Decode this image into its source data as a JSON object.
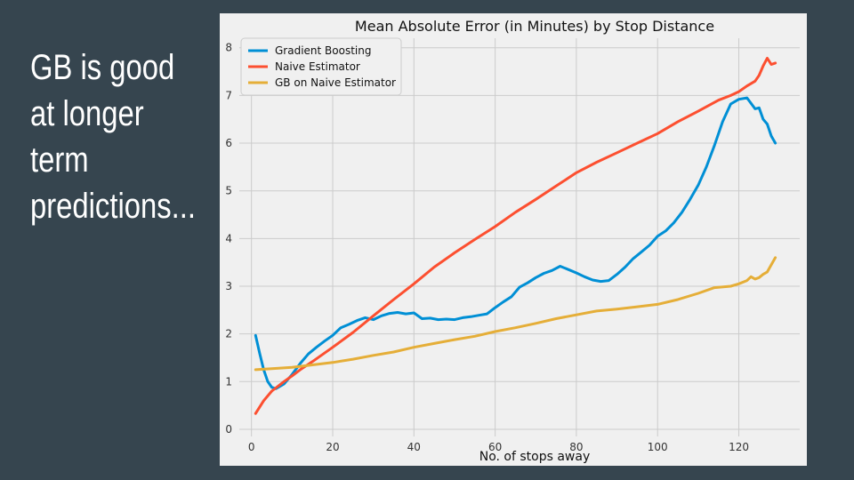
{
  "slide": {
    "text": "GB is good\nat longer\nterm\npredictions..."
  },
  "chart_data": {
    "type": "line",
    "title": "Mean Absolute Error (in Minutes) by Stop Distance",
    "xlabel": "No. of stops away",
    "ylabel": "",
    "xlim": [
      -3,
      135
    ],
    "ylim": [
      -0.15,
      8.2
    ],
    "xticks": [
      0,
      20,
      40,
      60,
      80,
      100,
      120
    ],
    "yticks": [
      0,
      1,
      2,
      3,
      4,
      5,
      6,
      7,
      8
    ],
    "grid": true,
    "legend_position": "top-left",
    "series": [
      {
        "name": "Gradient Boosting",
        "color": "#008fd5",
        "x": [
          1,
          2,
          3,
          4,
          5,
          6,
          8,
          10,
          12,
          14,
          16,
          18,
          20,
          22,
          24,
          26,
          28,
          30,
          32,
          34,
          36,
          38,
          40,
          42,
          44,
          46,
          48,
          50,
          52,
          54,
          56,
          58,
          60,
          62,
          64,
          66,
          68,
          70,
          72,
          74,
          76,
          78,
          80,
          82,
          84,
          86,
          88,
          90,
          92,
          94,
          96,
          98,
          100,
          102,
          104,
          106,
          108,
          110,
          112,
          114,
          116,
          118,
          120,
          122,
          124,
          125,
          126,
          127,
          128,
          129
        ],
        "y": [
          1.97,
          1.6,
          1.25,
          1.0,
          0.88,
          0.85,
          0.95,
          1.15,
          1.38,
          1.58,
          1.72,
          1.85,
          1.97,
          2.13,
          2.2,
          2.28,
          2.34,
          2.3,
          2.38,
          2.43,
          2.45,
          2.42,
          2.44,
          2.32,
          2.33,
          2.3,
          2.31,
          2.3,
          2.34,
          2.36,
          2.39,
          2.42,
          2.55,
          2.67,
          2.78,
          2.98,
          3.07,
          3.18,
          3.27,
          3.33,
          3.42,
          3.35,
          3.28,
          3.2,
          3.13,
          3.1,
          3.12,
          3.25,
          3.4,
          3.58,
          3.72,
          3.86,
          4.05,
          4.16,
          4.33,
          4.55,
          4.82,
          5.12,
          5.5,
          5.95,
          6.45,
          6.82,
          6.92,
          6.95,
          6.72,
          6.74,
          6.5,
          6.4,
          6.15,
          6.0
        ]
      },
      {
        "name": "Naive Estimator",
        "color": "#fc4f30",
        "x": [
          1,
          3,
          5,
          8,
          10,
          12,
          15,
          20,
          25,
          30,
          35,
          40,
          45,
          50,
          55,
          60,
          65,
          70,
          75,
          80,
          85,
          90,
          95,
          100,
          105,
          110,
          115,
          118,
          120,
          122,
          124,
          125,
          126,
          127,
          128,
          129
        ],
        "y": [
          0.33,
          0.6,
          0.8,
          1.0,
          1.12,
          1.25,
          1.42,
          1.72,
          2.03,
          2.38,
          2.72,
          3.05,
          3.4,
          3.7,
          3.98,
          4.25,
          4.55,
          4.82,
          5.1,
          5.38,
          5.6,
          5.8,
          6.0,
          6.2,
          6.45,
          6.67,
          6.9,
          7.0,
          7.08,
          7.2,
          7.3,
          7.42,
          7.62,
          7.78,
          7.65,
          7.68
        ]
      },
      {
        "name": "GB on Naive Estimator",
        "color": "#e5ae38",
        "x": [
          1,
          5,
          10,
          15,
          20,
          25,
          30,
          35,
          40,
          45,
          50,
          55,
          60,
          65,
          70,
          75,
          80,
          85,
          90,
          95,
          100,
          105,
          110,
          114,
          118,
          120,
          122,
          123,
          124,
          125,
          126,
          127,
          128,
          129
        ],
        "y": [
          1.25,
          1.27,
          1.3,
          1.35,
          1.4,
          1.47,
          1.55,
          1.62,
          1.72,
          1.8,
          1.88,
          1.95,
          2.05,
          2.13,
          2.22,
          2.32,
          2.4,
          2.48,
          2.52,
          2.57,
          2.62,
          2.72,
          2.85,
          2.97,
          3.0,
          3.05,
          3.12,
          3.2,
          3.15,
          3.18,
          3.25,
          3.3,
          3.45,
          3.6
        ]
      }
    ]
  }
}
